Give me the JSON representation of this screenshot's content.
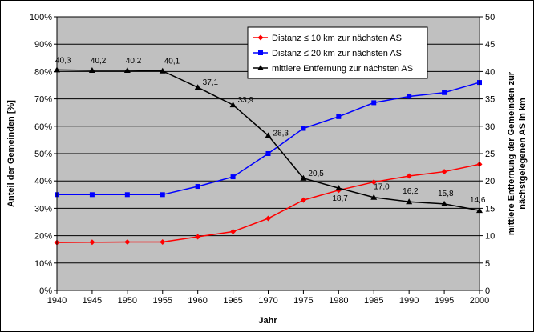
{
  "chart_data": {
    "type": "line",
    "title": "",
    "xlabel": "Jahr",
    "ylabel_left": "Anteil der Gemeinden [%]",
    "ylabel_right": [
      "mittlere Entfernung der Gemeinden zur",
      "nächstgelegenen AS in km"
    ],
    "x": [
      1940,
      1945,
      1950,
      1955,
      1960,
      1965,
      1970,
      1975,
      1980,
      1985,
      1990,
      1995,
      2000
    ],
    "x_ticks": [
      "1940",
      "1945",
      "1950",
      "1955",
      "1960",
      "1965",
      "1970",
      "1975",
      "1980",
      "1985",
      "1990",
      "1995",
      "2000"
    ],
    "ylim_left": [
      0,
      100
    ],
    "y_ticks_left": [
      "0%",
      "10%",
      "20%",
      "30%",
      "40%",
      "50%",
      "60%",
      "70%",
      "80%",
      "90%",
      "100%"
    ],
    "ylim_right": [
      0,
      50
    ],
    "y_ticks_right": [
      "0",
      "5",
      "10",
      "15",
      "20",
      "25",
      "30",
      "35",
      "40",
      "45",
      "50"
    ],
    "grid": "horizontal",
    "legend_placement": "top-right",
    "series": [
      {
        "name": "Distanz ≤ 10 km zur nächsten AS",
        "axis": "left",
        "color": "#ff0000",
        "marker": "diamond",
        "values": [
          17.5,
          17.6,
          17.7,
          17.7,
          19.6,
          21.5,
          26.3,
          33.0,
          36.6,
          39.6,
          41.8,
          43.4,
          46.1
        ]
      },
      {
        "name": "Distanz ≤ 20 km zur nächsten AS",
        "axis": "left",
        "color": "#0000ff",
        "marker": "square",
        "values": [
          35.0,
          35.0,
          35.0,
          35.0,
          38.0,
          41.5,
          50.0,
          59.2,
          63.5,
          68.6,
          70.9,
          72.3,
          76.0
        ]
      },
      {
        "name": "mittlere Entfernung zur nächsten AS",
        "axis": "right",
        "color": "#000000",
        "marker": "triangle",
        "values": [
          40.3,
          40.2,
          40.2,
          40.1,
          37.1,
          33.9,
          28.3,
          20.5,
          18.7,
          17.0,
          16.2,
          15.8,
          14.6
        ],
        "labels": [
          "40,3",
          "40,2",
          "40,2",
          "40,1",
          "37,1",
          "33,9",
          "28,3",
          "20,5",
          "18,7",
          "17,0",
          "16,2",
          "15,8",
          "14,6"
        ]
      }
    ]
  }
}
